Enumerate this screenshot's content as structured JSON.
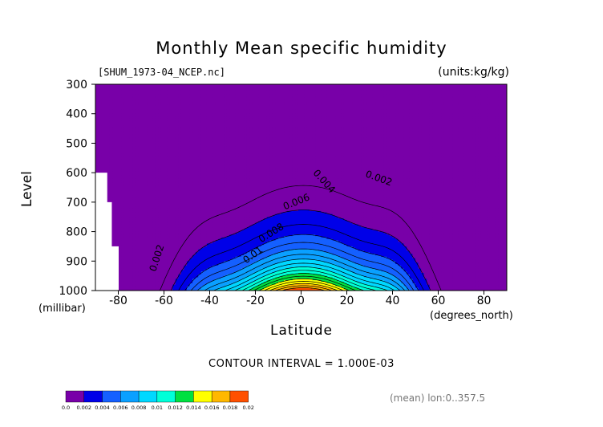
{
  "title": "Monthly Mean specific humidity",
  "file_label": "[SHUM_1973-04_NCEP.nc]",
  "units_label": "(units:kg/kg)",
  "contour_interval": "CONTOUR INTERVAL = 1.000E-03",
  "mean_note": "(mean) lon:0..357.5",
  "chart_data": {
    "type": "filled-contour",
    "xlabel": "Latitude",
    "x_unit": "(degrees_north)",
    "ylabel": "Level",
    "y_unit": "(millibar)",
    "xlim": [
      -90,
      90
    ],
    "ylim": [
      1000,
      300
    ],
    "x_ticks": [
      -80,
      -60,
      -40,
      -20,
      0,
      20,
      40,
      60,
      80
    ],
    "y_ticks": [
      300,
      400,
      500,
      600,
      700,
      800,
      900,
      1000
    ],
    "levels": [
      0.0,
      0.002,
      0.004,
      0.006,
      0.008,
      0.01,
      0.012,
      0.014,
      0.016,
      0.018,
      0.02
    ],
    "level_labels": [
      "0.0",
      "0.002",
      "0.004",
      "0.006",
      "0.008",
      "0.01",
      "0.012",
      "0.014",
      "0.016",
      "0.018",
      "0.02"
    ],
    "colors": [
      "#7800a8",
      "#0000e8",
      "#1560ff",
      "#0aa0ff",
      "#00d8ff",
      "#00ffd8",
      "#00e040",
      "#ffff00",
      "#ffb800",
      "#ff5000",
      "#e80000"
    ],
    "contour_labels": [
      {
        "text": "0.002",
        "lat": -63,
        "level": 890,
        "angle": -72
      },
      {
        "text": "0.002",
        "lat": 34,
        "level": 620,
        "angle": 20
      },
      {
        "text": "0.004",
        "lat": 10,
        "level": 630,
        "angle": 48
      },
      {
        "text": "0.006",
        "lat": -2,
        "level": 700,
        "angle": -22
      },
      {
        "text": "0.008",
        "lat": -13,
        "level": 805,
        "angle": -32
      },
      {
        "text": "0.01",
        "lat": -21,
        "level": 880,
        "angle": -36
      }
    ],
    "grid": false
  }
}
